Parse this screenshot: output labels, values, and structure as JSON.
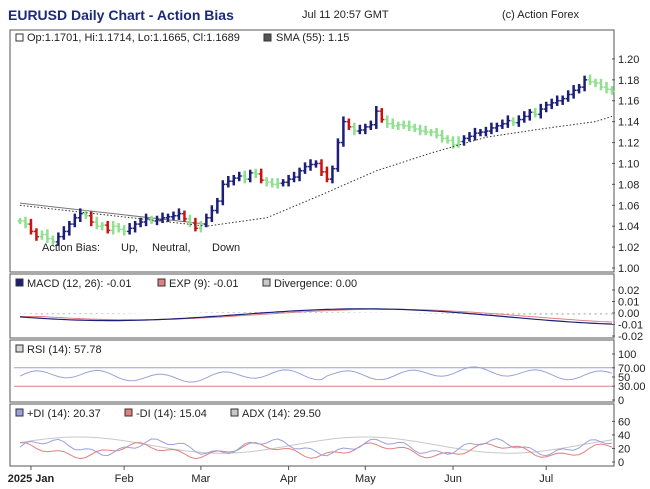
{
  "header": {
    "title": "EURUSD Daily Chart - Action Bias",
    "date": "Jul 11 20:57 GMT",
    "credit": "(c) Action Forex"
  },
  "colors": {
    "up": "#1b1f7a",
    "neutral": "#8fe08f",
    "down": "#cc1111",
    "macd": "#1b1f7a",
    "exp": "#e08080",
    "divergence": "#c8c8c8",
    "rsi": "#9aa0dd",
    "plus_di": "#9aa0dd",
    "minus_di": "#e08080",
    "adx": "#c8c8c8"
  },
  "chart_data": [
    {
      "type": "ohlc",
      "panel": "price",
      "legend": [
        "Op:1.1701, Hi:1.1714, Lo:1.1665, Cl:1.1689",
        "SMA (55): 1.15"
      ],
      "bias_legend": {
        "label": "Action Bias:",
        "up": "Up,",
        "neutral": "Neutral,",
        "down": "Down"
      },
      "ylim": [
        1.0,
        1.22
      ],
      "yticks": [
        "1.20",
        "1.18",
        "1.16",
        "1.14",
        "1.12",
        "1.10",
        "1.08",
        "1.06",
        "1.04",
        "1.02",
        "1.00"
      ],
      "ytick_values": [
        1.2,
        1.18,
        1.16,
        1.14,
        1.12,
        1.1,
        1.08,
        1.06,
        1.04,
        1.02,
        1.0
      ],
      "xticks": [
        "2025 Jan",
        "Feb",
        "Mar",
        "Apr",
        "May",
        "Jun",
        "Jul"
      ],
      "bars_start_index": 0,
      "bars_bias": "computed-from-trend",
      "close": [
        1.045,
        1.042,
        1.035,
        1.03,
        1.032,
        1.028,
        1.025,
        1.03,
        1.035,
        1.042,
        1.048,
        1.052,
        1.05,
        1.044,
        1.04,
        1.041,
        1.036,
        1.04,
        1.037,
        1.035,
        1.038,
        1.042,
        1.044,
        1.047,
        1.045,
        1.046,
        1.048,
        1.049,
        1.05,
        1.052,
        1.047,
        1.043,
        1.038,
        1.042,
        1.048,
        1.055,
        1.064,
        1.08,
        1.083,
        1.086,
        1.088,
        1.085,
        1.091,
        1.09,
        1.084,
        1.082,
        1.08,
        1.081,
        1.082,
        1.085,
        1.087,
        1.093,
        1.097,
        1.099,
        1.1,
        1.092,
        1.085,
        1.095,
        1.12,
        1.14,
        1.135,
        1.131,
        1.132,
        1.135,
        1.137,
        1.15,
        1.142,
        1.138,
        1.136,
        1.137,
        1.136,
        1.135,
        1.133,
        1.131,
        1.13,
        1.13,
        1.127,
        1.124,
        1.122,
        1.118,
        1.121,
        1.124,
        1.126,
        1.129,
        1.13,
        1.131,
        1.134,
        1.136,
        1.138,
        1.141,
        1.139,
        1.142,
        1.145,
        1.149,
        1.147,
        1.152,
        1.156,
        1.158,
        1.16,
        1.162,
        1.166,
        1.17,
        1.173,
        1.18,
        1.178,
        1.177,
        1.173,
        1.171,
        1.1689
      ],
      "sma": {
        "name": "SMA (55)",
        "points": [
          [
            0,
            1.06
          ],
          [
            34,
            1.04
          ],
          [
            45,
            1.048
          ],
          [
            55,
            1.07
          ],
          [
            65,
            1.093
          ],
          [
            75,
            1.11
          ],
          [
            85,
            1.125
          ],
          [
            95,
            1.133
          ],
          [
            105,
            1.14
          ],
          [
            108,
            1.145
          ]
        ]
      },
      "trendline": [
        [
          0,
          1.062
        ],
        [
          34,
          1.042
        ]
      ]
    },
    {
      "type": "line",
      "panel": "macd",
      "legend": [
        "MACD (12, 26): -0.01",
        "EXP (9): -0.01",
        "Divergence: 0.00"
      ],
      "ylim": [
        -0.02,
        0.02
      ],
      "yticks": [
        "0.02",
        "0.01",
        "0.00",
        "-0.01",
        "-0.02"
      ],
      "ytick_values": [
        0.02,
        0.01,
        0.0,
        -0.01,
        -0.02
      ]
    },
    {
      "type": "line",
      "panel": "rsi",
      "legend": [
        "RSI (14): 57.78"
      ],
      "ylim": [
        0,
        100
      ],
      "yticks": [
        "100",
        "70.00",
        "50",
        "30.00",
        "0"
      ],
      "ytick_values": [
        100,
        70,
        50,
        30,
        0
      ]
    },
    {
      "type": "line",
      "panel": "dmi",
      "legend": [
        "+DI (14): 20.37",
        "-DI (14): 15.04",
        "ADX (14): 29.50"
      ],
      "ylim": [
        0,
        65
      ],
      "yticks": [
        "60",
        "40",
        "20",
        "0"
      ],
      "ytick_values": [
        60,
        40,
        20,
        0
      ]
    }
  ]
}
